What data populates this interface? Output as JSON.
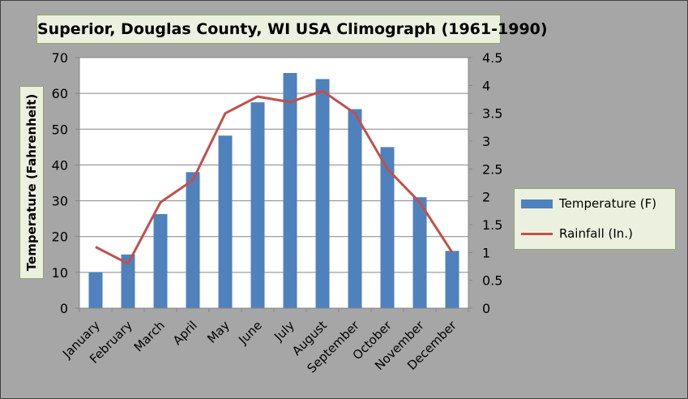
{
  "chart_data": {
    "type": "bar",
    "title": "Superior, Douglas County, WI USA Climograph (1961-1990)",
    "categories": [
      "January",
      "February",
      "March",
      "April",
      "May",
      "June",
      "July",
      "August",
      "September",
      "October",
      "November",
      "December"
    ],
    "series": [
      {
        "name": "Temperature (F)",
        "type": "bar",
        "axis": "left",
        "color": "#4f81bd",
        "values": [
          10,
          15,
          26.3,
          38,
          48.2,
          57.5,
          65.7,
          64,
          55.6,
          45,
          31,
          16
        ]
      },
      {
        "name": "Rainfall (In.)",
        "type": "line",
        "axis": "right",
        "color": "#c0504d",
        "values": [
          1.1,
          0.8,
          1.9,
          2.3,
          3.5,
          3.8,
          3.7,
          3.9,
          3.5,
          2.5,
          1.9,
          1.0
        ]
      }
    ],
    "ylabel": "Temperature (Fahrenheit)",
    "ylim": [
      0,
      70
    ],
    "yticks": [
      "0",
      "10",
      "20",
      "30",
      "40",
      "50",
      "60",
      "70"
    ],
    "y2lim": [
      0,
      4.5
    ],
    "y2ticks": [
      "0",
      "0.5",
      "1",
      "1.5",
      "2",
      "2.5",
      "3",
      "3.5",
      "4",
      "4.5"
    ],
    "grid": true,
    "legend_position": "right"
  }
}
